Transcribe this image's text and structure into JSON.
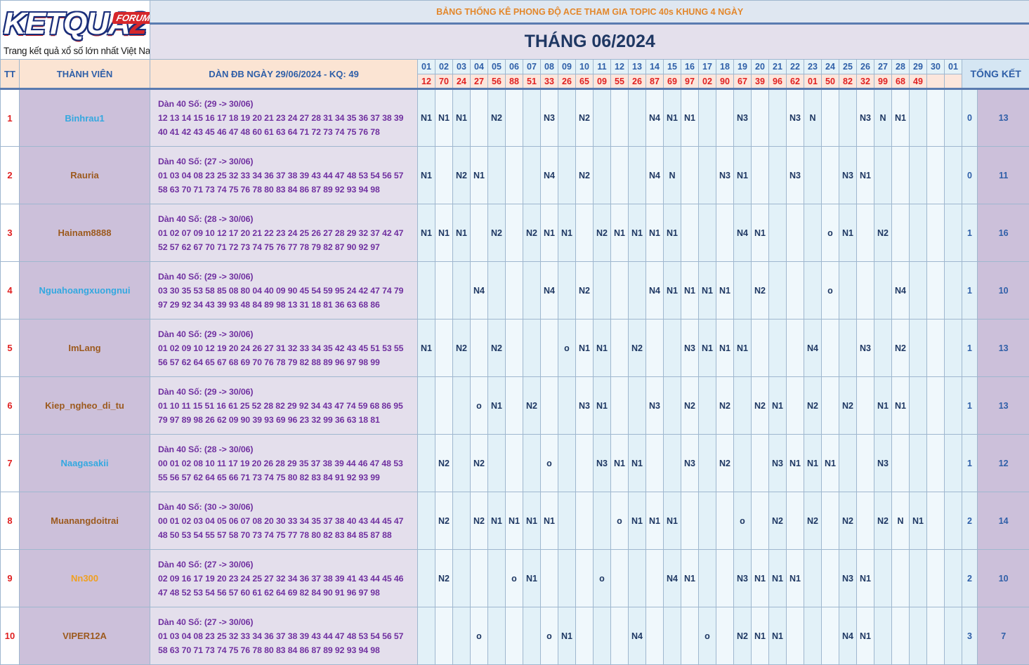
{
  "logo": {
    "brand_pre": "KETQUA",
    "brand_num": "2",
    "forum": "FORUM",
    "tagline": "Trang kết quả xổ số lớn nhất Việt Nam"
  },
  "title_small": "BẢNG THỐNG KÊ PHONG ĐỘ ACE THAM GIA TOPIC 40s KHUNG 4 NGÀY",
  "title_big": "THÁNG 06/2024",
  "headers": {
    "tt": "TT",
    "member": "THÀNH VIÊN",
    "dan": "DÀN ĐB NGÀY 29/06/2024 - KQ: 49",
    "total": "TỔNG KẾT"
  },
  "days": [
    "01",
    "02",
    "03",
    "04",
    "05",
    "06",
    "07",
    "08",
    "09",
    "10",
    "11",
    "12",
    "13",
    "14",
    "15",
    "16",
    "17",
    "18",
    "19",
    "20",
    "21",
    "22",
    "23",
    "24",
    "25",
    "26",
    "27",
    "28",
    "29",
    "30",
    "01"
  ],
  "results": [
    "12",
    "70",
    "24",
    "27",
    "56",
    "88",
    "51",
    "33",
    "26",
    "65",
    "09",
    "55",
    "26",
    "87",
    "69",
    "97",
    "02",
    "90",
    "67",
    "39",
    "96",
    "62",
    "01",
    "50",
    "82",
    "32",
    "99",
    "68",
    "49",
    "",
    ""
  ],
  "rows": [
    {
      "tt": "1",
      "name": "Binhrau1",
      "color": "#33a8e0",
      "dan_title": "Dàn 40 Số: (29 -> 30/06)",
      "dan_l1": "12 13 14 15 16 17 18 19 20 21 23 24 27 28 31 34 35 36 37 38 39",
      "dan_l2": "40 41 42 43 45 46 47 48 60 61 63 64 71 72 73 74 75 76 78",
      "cells": [
        "N1",
        "N1",
        "N1",
        "",
        "N2",
        "",
        "",
        "N3",
        "",
        "N2",
        "",
        "",
        "",
        "N4",
        "N1",
        "N1",
        "",
        "",
        "N3",
        "",
        "",
        "N3",
        "N",
        "",
        "",
        "N3",
        "N",
        "N1",
        "",
        "",
        ""
      ],
      "tk1": "0",
      "tk2": "13"
    },
    {
      "tt": "2",
      "name": "Rauria",
      "color": "#9c5a1e",
      "dan_title": "Dàn 40 Số: (27 -> 30/06)",
      "dan_l1": "01 03 04 08 23 25 32 33 34 36 37 38 39 43 44 47 48 53 54 56 57",
      "dan_l2": "58 63 70 71 73 74 75 76 78 80 83 84 86 87 89 92 93 94 98",
      "cells": [
        "N1",
        "",
        "N2",
        "N1",
        "",
        "",
        "",
        "N4",
        "",
        "N2",
        "",
        "",
        "",
        "N4",
        "N",
        "",
        "",
        "N3",
        "N1",
        "",
        "",
        "N3",
        "",
        "",
        "N3",
        "N1",
        "",
        "",
        "",
        "",
        ""
      ],
      "tk1": "0",
      "tk2": "11"
    },
    {
      "tt": "3",
      "name": "Hainam8888",
      "color": "#9c5a1e",
      "dan_title": "Dàn 40 Số: (28 -> 30/06)",
      "dan_l1": "01 02 07 09 10 12 17 20 21 22 23 24 25 26 27 28 29 32 37 42 47",
      "dan_l2": "52 57 62 67 70 71 72 73 74 75 76 77 78 79 82 87 90 92 97",
      "cells": [
        "N1",
        "N1",
        "N1",
        "",
        "N2",
        "",
        "N2",
        "N1",
        "N1",
        "",
        "N2",
        "N1",
        "N1",
        "N1",
        "N1",
        "",
        "",
        "",
        "N4",
        "N1",
        "",
        "",
        "",
        "o",
        "N1",
        "",
        "N2",
        "",
        "",
        "",
        ""
      ],
      "tk1": "1",
      "tk2": "16"
    },
    {
      "tt": "4",
      "name": "Nguahoangxuongnui",
      "color": "#33a8e0",
      "dan_title": "Dàn 40 Số: (29 -> 30/06)",
      "dan_l1": "03 30 35 53 58 85 08 80 04 40 09 90 45 54 59 95 24 42 47 74 79",
      "dan_l2": "97 29 92 34 43 39 93 48 84 89 98 13 31 18 81 36 63 68 86",
      "cells": [
        "",
        "",
        "",
        "N4",
        "",
        "",
        "",
        "N4",
        "",
        "N2",
        "",
        "",
        "",
        "N4",
        "N1",
        "N1",
        "N1",
        "N1",
        "",
        "N2",
        "",
        "",
        "",
        "o",
        "",
        "",
        "",
        "N4",
        "",
        "",
        ""
      ],
      "tk1": "1",
      "tk2": "10"
    },
    {
      "tt": "5",
      "name": "ImLang",
      "color": "#9c5a1e",
      "dan_title": "Dàn 40 Số: (29 -> 30/06)",
      "dan_l1": "01 02 09 10 12 19 20 24 26 27 31 32 33 34 35 42 43 45 51 53 55",
      "dan_l2": "56 57 62 64 65 67 68 69 70 76 78 79 82 88 89 96 97 98 99",
      "cells": [
        "N1",
        "",
        "N2",
        "",
        "N2",
        "",
        "",
        "",
        "o",
        "N1",
        "N1",
        "",
        "N2",
        "",
        "",
        "N3",
        "N1",
        "N1",
        "N1",
        "",
        "",
        "",
        "N4",
        "",
        "",
        "N3",
        "",
        "N2",
        "",
        "",
        ""
      ],
      "tk1": "1",
      "tk2": "13"
    },
    {
      "tt": "6",
      "name": "Kiep_ngheo_di_tu",
      "color": "#9c5a1e",
      "dan_title": "Dàn 40 Số: (29 -> 30/06)",
      "dan_l1": "01 10 11 15 51 16 61 25 52 28 82 29 92 34 43 47 74 59 68 86 95",
      "dan_l2": "79 97 89 98 26 62 09 90 39 93 69 96 23 32 99 36 63 18 81",
      "cells": [
        "",
        "",
        "",
        "o",
        "N1",
        "",
        "N2",
        "",
        "",
        "N3",
        "N1",
        "",
        "",
        "N3",
        "",
        "N2",
        "",
        "N2",
        "",
        "N2",
        "N1",
        "",
        "N2",
        "",
        "N2",
        "",
        "N1",
        "N1",
        "",
        "",
        ""
      ],
      "tk1": "1",
      "tk2": "13"
    },
    {
      "tt": "7",
      "name": "Naagasakii",
      "color": "#33a8e0",
      "dan_title": "Dàn 40 Số: (28 -> 30/06)",
      "dan_l1": "00 01 02 08 10 11 17 19 20 26 28 29 35 37 38 39 44 46 47 48 53",
      "dan_l2": "55 56 57 62 64 65 66 71 73 74 75 80 82 83 84 91 92 93 99",
      "cells": [
        "",
        "N2",
        "",
        "N2",
        "",
        "",
        "",
        "o",
        "",
        "",
        "N3",
        "N1",
        "N1",
        "",
        "",
        "N3",
        "",
        "N2",
        "",
        "",
        "N3",
        "N1",
        "N1",
        "N1",
        "",
        "",
        "N3",
        "",
        "",
        "",
        ""
      ],
      "tk1": "1",
      "tk2": "12"
    },
    {
      "tt": "8",
      "name": "Muanangdoitrai",
      "color": "#9c5a1e",
      "dan_title": "Dàn 40 Số: (30 -> 30/06)",
      "dan_l1": "00 01 02 03 04 05 06 07 08 20 30 33 34 35 37 38 40 43 44 45 47",
      "dan_l2": "48 50 53 54 55 57 58 70 73 74 75 77 78 80 82 83 84 85 87 88",
      "cells": [
        "",
        "N2",
        "",
        "N2",
        "N1",
        "N1",
        "N1",
        "N1",
        "",
        "",
        "",
        "o",
        "N1",
        "N1",
        "N1",
        "",
        "",
        "",
        "o",
        "",
        "N2",
        "",
        "N2",
        "",
        "N2",
        "",
        "N2",
        "N",
        "N1",
        "",
        ""
      ],
      "tk1": "2",
      "tk2": "14"
    },
    {
      "tt": "9",
      "name": "Nn300",
      "color": "#f0a020",
      "dan_title": "Dàn 40 Số: (27 -> 30/06)",
      "dan_l1": "02 09 16 17 19 20 23 24 25 27 32 34 36 37 38 39 41 43 44 45 46",
      "dan_l2": "47 48 52 53 54 56 57 60 61 62 64 69 82 84 90 91 96 97 98",
      "cells": [
        "",
        "N2",
        "",
        "",
        "",
        "o",
        "N1",
        "",
        "",
        "",
        "o",
        "",
        "",
        "",
        "N4",
        "N1",
        "",
        "",
        "N3",
        "N1",
        "N1",
        "N1",
        "",
        "",
        "N3",
        "N1",
        "",
        "",
        "",
        "",
        ""
      ],
      "tk1": "2",
      "tk2": "10"
    },
    {
      "tt": "10",
      "name": "VIPER12A",
      "color": "#9c5a1e",
      "dan_title": "Dàn 40 Số: (27 -> 30/06)",
      "dan_l1": "01 03 04 08 23 25 32 33 34 36 37 38 39 43 44 47 48 53 54 56 57",
      "dan_l2": "58 63 70 71 73 74 75 76 78 80 83 84 86 87 89 92 93 94 98",
      "cells": [
        "",
        "",
        "",
        "o",
        "",
        "",
        "",
        "o",
        "N1",
        "",
        "",
        "",
        "N4",
        "",
        "",
        "",
        "o",
        "",
        "N2",
        "N1",
        "N1",
        "",
        "",
        "",
        "N4",
        "N1",
        "",
        "",
        "",
        "",
        ""
      ],
      "tk1": "3",
      "tk2": "7"
    }
  ]
}
